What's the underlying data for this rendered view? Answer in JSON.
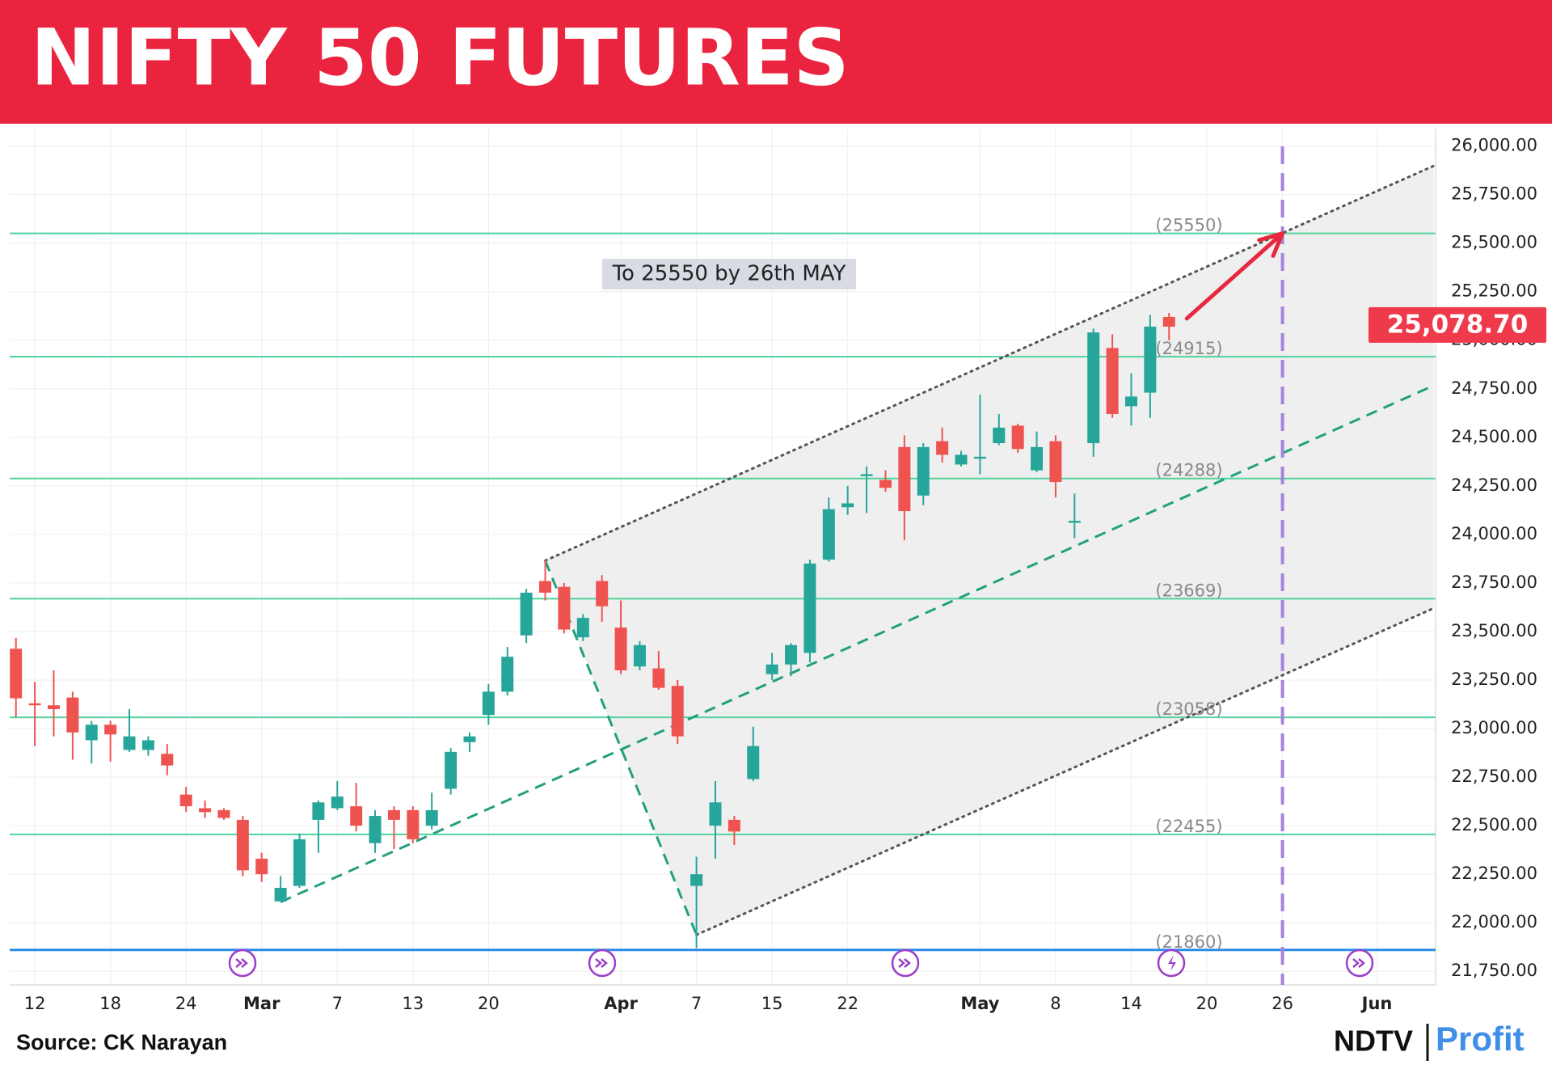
{
  "chart_data": {
    "type": "candlestick",
    "title": "NIFTY 50 FUTURES",
    "x": [
      -1,
      0,
      1,
      2,
      3,
      4,
      5,
      6,
      7,
      8,
      9,
      10,
      11,
      12,
      13,
      14,
      15,
      16,
      17,
      18,
      19,
      20,
      21,
      22,
      23,
      24,
      25,
      26,
      27,
      28,
      29,
      30,
      31,
      32,
      33,
      34,
      35,
      36,
      37,
      38,
      39,
      40,
      41,
      42,
      43,
      44,
      45,
      46,
      47,
      48,
      49,
      50,
      51,
      52,
      53,
      54,
      55,
      56,
      57,
      58,
      59,
      60
    ],
    "open": [
      23411,
      23130,
      23120,
      23160,
      22940,
      23020,
      22890,
      22890,
      22870,
      22660,
      22590,
      22580,
      22530,
      22330,
      22110,
      22190,
      22530,
      22590,
      22600,
      22410,
      22580,
      22580,
      22500,
      22690,
      22930,
      23070,
      23190,
      23480,
      23760,
      23730,
      23470,
      23760,
      23520,
      23320,
      23310,
      23220,
      22190,
      22500,
      22530,
      22740,
      23280,
      23330,
      23390,
      23870,
      24140,
      24300,
      24280,
      24450,
      24200,
      24480,
      24360,
      24390,
      24470,
      24560,
      24330,
      24480,
      24060,
      24470,
      24960,
      24660,
      24730,
      25120
    ],
    "high": [
      23467,
      23240,
      23300,
      23190,
      23040,
      23040,
      23100,
      22960,
      22920,
      22700,
      22630,
      22590,
      22550,
      22360,
      22240,
      22460,
      22630,
      22730,
      22720,
      22580,
      22600,
      22600,
      22670,
      22900,
      22980,
      23230,
      23420,
      23720,
      23870,
      23750,
      23590,
      23790,
      23660,
      23450,
      23400,
      23250,
      22340,
      22730,
      22550,
      23010,
      23390,
      23440,
      23870,
      24190,
      24250,
      24350,
      24330,
      24510,
      24470,
      24550,
      24430,
      24720,
      24620,
      24570,
      24530,
      24510,
      24210,
      25060,
      25030,
      24830,
      25130,
      25140
    ],
    "low": [
      23060,
      22910,
      22960,
      22840,
      22820,
      22830,
      22880,
      22860,
      22760,
      22570,
      22540,
      22530,
      22240,
      22210,
      22110,
      22180,
      22360,
      22580,
      22470,
      22360,
      22380,
      22410,
      22480,
      22660,
      22880,
      23020,
      23170,
      23440,
      23660,
      23490,
      23450,
      23550,
      23280,
      23300,
      23200,
      22920,
      21870,
      22330,
      22400,
      22730,
      23250,
      23270,
      23340,
      23860,
      24100,
      24110,
      24220,
      23970,
      24150,
      24370,
      24350,
      24310,
      24460,
      24420,
      24320,
      24190,
      23980,
      24400,
      24600,
      24560,
      24600,
      25000
    ],
    "close": [
      23156,
      23120,
      23100,
      22980,
      23020,
      22970,
      22960,
      22940,
      22810,
      22600,
      22570,
      22540,
      22270,
      22250,
      22180,
      22430,
      22620,
      22650,
      22500,
      22550,
      22530,
      22430,
      22580,
      22880,
      22960,
      23190,
      23370,
      23700,
      23700,
      23510,
      23570,
      23630,
      23300,
      23430,
      23210,
      22960,
      22250,
      22620,
      22470,
      22910,
      23330,
      23430,
      23850,
      24130,
      24160,
      24310,
      24240,
      24120,
      24450,
      24410,
      24410,
      24400,
      24550,
      24440,
      24450,
      24270,
      24070,
      25040,
      24620,
      24710,
      25070,
      25070
    ],
    "up_color": "#26a69a",
    "down_color": "#ef5350",
    "xlim": [
      -1.33,
      74.1
    ],
    "ylim": [
      21680,
      26090
    ],
    "xticks": [
      {
        "value": 0,
        "label": "12"
      },
      {
        "value": 4,
        "label": "18"
      },
      {
        "value": 8,
        "label": "24"
      },
      {
        "value": 12,
        "label": "Mar"
      },
      {
        "value": 16,
        "label": "7"
      },
      {
        "value": 20,
        "label": "13"
      },
      {
        "value": 24,
        "label": "20"
      },
      {
        "value": 31,
        "label": "Apr"
      },
      {
        "value": 35,
        "label": "7"
      },
      {
        "value": 39,
        "label": "15"
      },
      {
        "value": 43,
        "label": "22"
      },
      {
        "value": 50,
        "label": "May"
      },
      {
        "value": 54,
        "label": "8"
      },
      {
        "value": 58,
        "label": "14"
      },
      {
        "value": 62,
        "label": "20"
      },
      {
        "value": 66,
        "label": "26"
      },
      {
        "value": 71,
        "label": "Jun"
      }
    ],
    "yticks": [
      {
        "value": 26000,
        "label": "26,000.00"
      },
      {
        "value": 25750,
        "label": "25,750.00"
      },
      {
        "value": 25500,
        "label": "25,500.00"
      },
      {
        "value": 25250,
        "label": "25,250.00"
      },
      {
        "value": 25000,
        "label": "25,000.00"
      },
      {
        "value": 24750,
        "label": "24,750.00"
      },
      {
        "value": 24500,
        "label": "24,500.00"
      },
      {
        "value": 24250,
        "label": "24,250.00"
      },
      {
        "value": 24000,
        "label": "24,000.00"
      },
      {
        "value": 23750,
        "label": "23,750.00"
      },
      {
        "value": 23500,
        "label": "23,500.00"
      },
      {
        "value": 23250,
        "label": "23,250.00"
      },
      {
        "value": 23000,
        "label": "23,000.00"
      },
      {
        "value": 22750,
        "label": "22,750.00"
      },
      {
        "value": 22500,
        "label": "22,500.00"
      },
      {
        "value": 22250,
        "label": "22,250.00"
      },
      {
        "value": 22000,
        "label": "22,000.00"
      },
      {
        "value": 21750,
        "label": "21,750.00"
      }
    ],
    "grid": true,
    "levels": [
      {
        "value": 25550,
        "label": "(25550)",
        "color": "#4fd39c"
      },
      {
        "value": 24915,
        "label": "(24915)",
        "color": "#4fd39c"
      },
      {
        "value": 24288,
        "label": "(24288)",
        "color": "#4fd39c"
      },
      {
        "value": 23669,
        "label": "(23669)",
        "color": "#4fd39c"
      },
      {
        "value": 23058,
        "label": "(23058)",
        "color": "#4fd39c"
      },
      {
        "value": 22455,
        "label": "(22455)",
        "color": "#4fd39c"
      },
      {
        "value": 21860,
        "label": "(21860)",
        "color": "#2a8ae6"
      }
    ],
    "trendlines": [
      {
        "style": "dotted",
        "color": "#555555",
        "x": [
          27,
          74
        ],
        "y": [
          23865,
          25898
        ]
      },
      {
        "style": "dashed",
        "color": "#22a07e",
        "x": [
          13,
          74
        ],
        "y": [
          22107,
          24767
        ]
      },
      {
        "style": "dotted",
        "color": "#555555",
        "x": [
          35,
          74
        ],
        "y": [
          21938,
          23620
        ]
      },
      {
        "style": "dashed",
        "color": "#22a07e",
        "x": [
          27,
          35
        ],
        "y": [
          23865,
          21938
        ]
      }
    ],
    "shade_color": "#efefef",
    "marker_line": {
      "x": 66,
      "color": "#a684dd"
    },
    "annotation": "To 25550 by 26th MAY",
    "last_price": {
      "value": 25078.7,
      "label": "25,078.70"
    },
    "source": "Source: CK Narayan"
  },
  "brand": {
    "name": "NDTV",
    "product": "Profit"
  }
}
